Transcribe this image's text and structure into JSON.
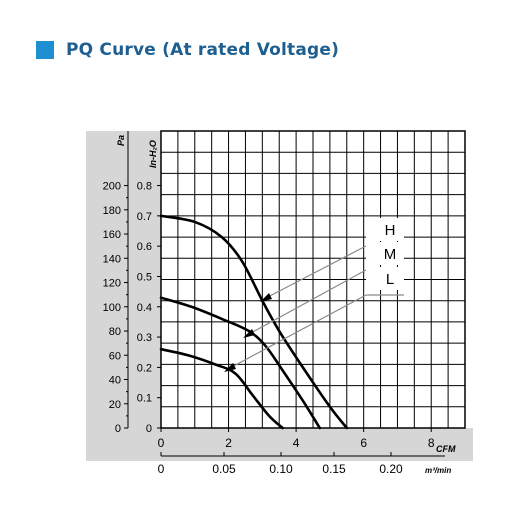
{
  "header": {
    "title": "PQ Curve (At rated Voltage)",
    "accent_color": "#1e8fd0"
  },
  "chart_data": {
    "type": "line",
    "title": "",
    "x_axes": [
      {
        "unit": "CFM",
        "range": [
          0,
          9
        ],
        "tick_labels": [
          "0",
          "2",
          "4",
          "6",
          "8"
        ]
      },
      {
        "unit": "m³/min",
        "tick_labels": [
          "0",
          "0.05",
          "0.10",
          "0.15",
          "0.20"
        ]
      }
    ],
    "y_axes": [
      {
        "unit": "Pa",
        "range": [
          0,
          200
        ],
        "tick_labels": [
          "0",
          "20",
          "40",
          "60",
          "80",
          "100",
          "120",
          "140",
          "160",
          "180",
          "200"
        ]
      },
      {
        "unit": "In-H₂O",
        "range": [
          0,
          0.8
        ],
        "tick_labels": [
          "0",
          "0.1",
          "0.2",
          "0.3",
          "0.4",
          "0.5",
          "0.6",
          "0.7",
          "0.8"
        ]
      }
    ],
    "ylim_top": 0.98,
    "grid": true,
    "series": [
      {
        "name": "H",
        "x": [
          0,
          1.0,
          1.8,
          2.4,
          3.0,
          3.5,
          4.2,
          5.0,
          5.5
        ],
        "y": [
          0.7,
          0.68,
          0.63,
          0.55,
          0.42,
          0.32,
          0.2,
          0.07,
          0
        ]
      },
      {
        "name": "M",
        "x": [
          0,
          0.9,
          1.8,
          2.6,
          3.1,
          3.6,
          4.2,
          4.7
        ],
        "y": [
          0.43,
          0.4,
          0.36,
          0.32,
          0.27,
          0.19,
          0.09,
          0
        ]
      },
      {
        "name": "L",
        "x": [
          0,
          0.8,
          1.6,
          2.2,
          2.7,
          3.2,
          3.6
        ],
        "y": [
          0.26,
          0.24,
          0.21,
          0.18,
          0.11,
          0.04,
          0
        ]
      }
    ]
  }
}
